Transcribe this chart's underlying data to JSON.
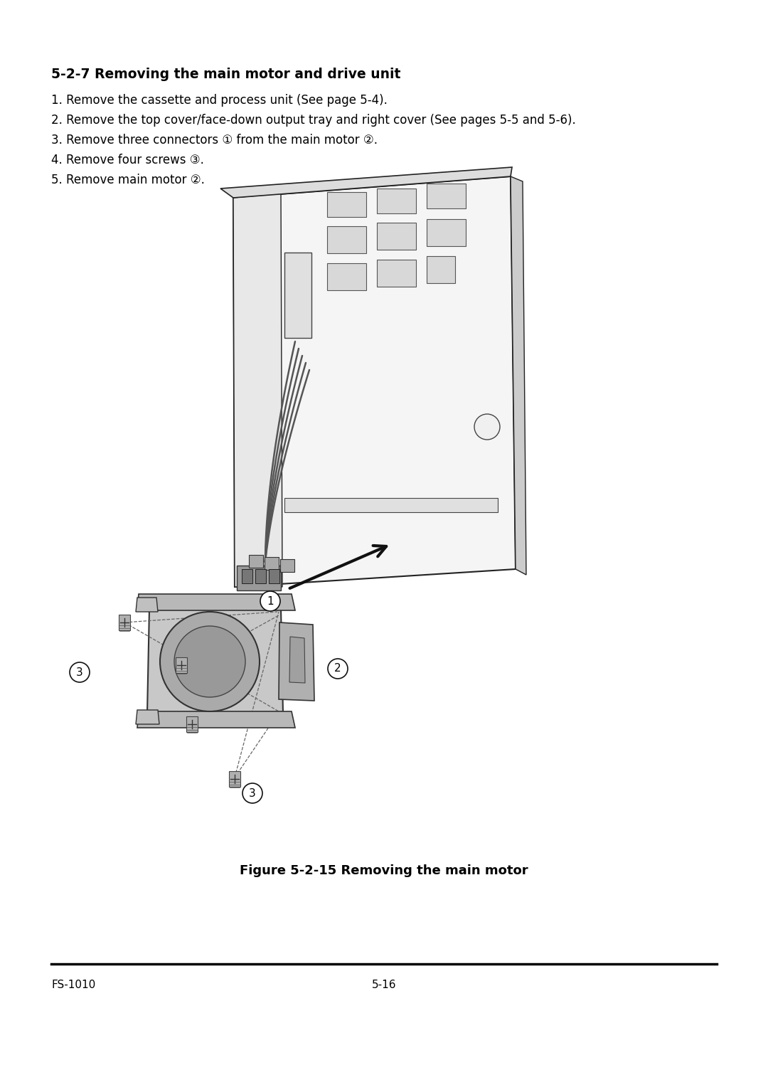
{
  "page_bg": "#ffffff",
  "title": "5-2-7 Removing the main motor and drive unit",
  "steps": [
    "1. Remove the cassette and process unit (See page 5-4).",
    "2. Remove the top cover/face-down output tray and right cover (See pages 5-5 and 5-6).",
    "3. Remove three connectors ① from the main motor ②.",
    "4. Remove four screws ③.",
    "5. Remove main motor ②."
  ],
  "figure_caption": "Figure 5-2-15 Removing the main motor",
  "footer_left": "FS-1010",
  "footer_center": "5-16",
  "title_fontsize": 13.5,
  "body_fontsize": 12,
  "caption_fontsize": 13,
  "footer_fontsize": 11,
  "text_color": "#000000"
}
